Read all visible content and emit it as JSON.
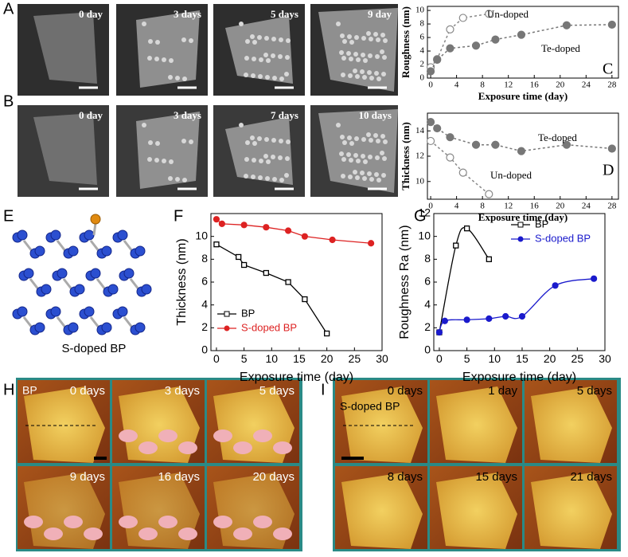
{
  "image_panels": [
    {
      "label": "A",
      "captions": [
        "0 day",
        "3 days",
        "5 days",
        "9 day"
      ]
    },
    {
      "label": "B",
      "captions": [
        "0 day",
        "3 days",
        "7 days",
        "10 days"
      ]
    },
    {
      "label": "E",
      "caption": "S-doped BP"
    },
    {
      "label": "H",
      "sample": "BP",
      "captions": [
        "0 days",
        "3 days",
        "5 days",
        "9 days",
        "16 days",
        "20 days"
      ]
    },
    {
      "label": "I",
      "sample": "S-doped BP",
      "captions": [
        "0 days",
        "1 day",
        "5 days",
        "8 days",
        "15 days",
        "21 days"
      ]
    }
  ],
  "chart_data": [
    {
      "type": "line",
      "label": "C",
      "xlabel": "Exposure time (day)",
      "ylabel": "Roughness (nm)",
      "xlim": [
        -0.5,
        29
      ],
      "ylim": [
        0,
        10.6
      ],
      "xticks": [
        0,
        4,
        8,
        12,
        16,
        20,
        24,
        28
      ],
      "yticks": [
        0,
        2,
        4,
        6,
        8,
        10
      ],
      "line_style": "dashed",
      "legend": null,
      "series": [
        {
          "name": "Un-doped",
          "color": "#888888",
          "marker": "open-circle",
          "x": [
            0,
            1,
            3,
            5,
            9
          ],
          "values": [
            1.6,
            2.8,
            7.2,
            8.9,
            9.5
          ]
        },
        {
          "name": "Te-doped",
          "color": "#777777",
          "marker": "filled-circle",
          "x": [
            0,
            1,
            3,
            7,
            10,
            14,
            21,
            28
          ],
          "values": [
            1.0,
            2.7,
            4.4,
            4.8,
            5.7,
            6.4,
            7.8,
            7.9
          ]
        }
      ]
    },
    {
      "type": "line",
      "label": "D",
      "xlabel": "Exposure time (day)",
      "ylabel": "Thickness (nm)",
      "xlim": [
        -0.5,
        29
      ],
      "ylim": [
        8.6,
        15.4
      ],
      "xticks": [
        0,
        4,
        8,
        12,
        16,
        20,
        24,
        28
      ],
      "yticks": [
        10,
        12,
        14
      ],
      "line_style": "dashed",
      "legend": null,
      "series": [
        {
          "name": "Te-doped",
          "color": "#777777",
          "marker": "filled-circle",
          "x": [
            0,
            1,
            3,
            7,
            10,
            14,
            21,
            28
          ],
          "values": [
            14.7,
            14.2,
            13.5,
            12.9,
            12.9,
            12.4,
            12.9,
            12.6
          ]
        },
        {
          "name": "Un-doped",
          "color": "#888888",
          "marker": "open-circle",
          "x": [
            0,
            3,
            5,
            9
          ],
          "values": [
            13.2,
            11.9,
            10.7,
            9.0
          ]
        }
      ]
    },
    {
      "type": "line",
      "label": "F",
      "xlabel": "Exposure time (day)",
      "ylabel": "Thickness (nm)",
      "xlim": [
        -1,
        30
      ],
      "ylim": [
        0,
        12
      ],
      "xticks": [
        0,
        5,
        10,
        15,
        20,
        25,
        30
      ],
      "yticks": [
        0,
        2,
        4,
        6,
        8,
        10
      ],
      "line_style": "solid",
      "legend": "lower left",
      "series": [
        {
          "name": "BP",
          "color": "#000000",
          "marker": "open-square",
          "x": [
            0,
            4,
            5,
            9,
            13,
            16,
            20
          ],
          "values": [
            9.3,
            8.2,
            7.5,
            6.8,
            6.0,
            4.5,
            1.5
          ]
        },
        {
          "name": "S-doped BP",
          "color": "#dd2222",
          "marker": "filled-circle",
          "x": [
            0,
            1,
            5,
            9,
            13,
            16,
            21,
            28
          ],
          "values": [
            11.5,
            11.1,
            11.0,
            10.8,
            10.5,
            10.0,
            9.7,
            9.4
          ]
        }
      ]
    },
    {
      "type": "line",
      "label": "G",
      "xlabel": "Exposure time (day)",
      "ylabel": "Roughness Ra (nm)",
      "xlim": [
        -1,
        30
      ],
      "ylim": [
        0,
        12
      ],
      "xticks": [
        0,
        5,
        10,
        15,
        20,
        25,
        30
      ],
      "yticks": [
        0,
        2,
        4,
        6,
        8,
        10,
        12
      ],
      "line_style": "smooth",
      "legend": "upper right",
      "series": [
        {
          "name": "BP",
          "color": "#000000",
          "marker": "open-square",
          "x": [
            0,
            3,
            5,
            9
          ],
          "values": [
            1.6,
            9.2,
            10.7,
            8.0
          ]
        },
        {
          "name": "S-doped BP",
          "color": "#1a1acc",
          "marker": "filled-circle",
          "x": [
            0,
            1,
            5,
            9,
            12,
            15,
            21,
            28
          ],
          "values": [
            1.6,
            2.6,
            2.7,
            2.8,
            3.0,
            3.0,
            5.7,
            6.3
          ]
        }
      ]
    }
  ]
}
